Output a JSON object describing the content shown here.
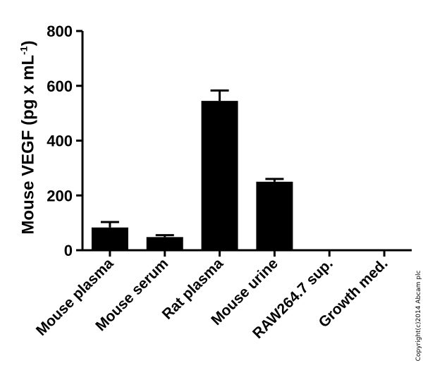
{
  "chart_data": {
    "type": "bar",
    "categories": [
      "Mouse plasma",
      "Mouse serum",
      "Rat plasma",
      "Mouse urine",
      "RAW264.7 sup.",
      "Growth med."
    ],
    "values": [
      83,
      48,
      545,
      250,
      0,
      0
    ],
    "error_bars": [
      20,
      7,
      38,
      10,
      0,
      0
    ],
    "ylabel_main": "Mouse VEGF (pg x mL",
    "ylabel_sup": "-1",
    "ylabel_end": ")",
    "xlabel": "",
    "ylim": [
      0,
      800
    ],
    "yticks": [
      0,
      200,
      400,
      600,
      800
    ],
    "bar_color": "#000000",
    "grid": false,
    "legend": "none"
  },
  "copyright": "Copyright(c)2014 Abcam plc"
}
